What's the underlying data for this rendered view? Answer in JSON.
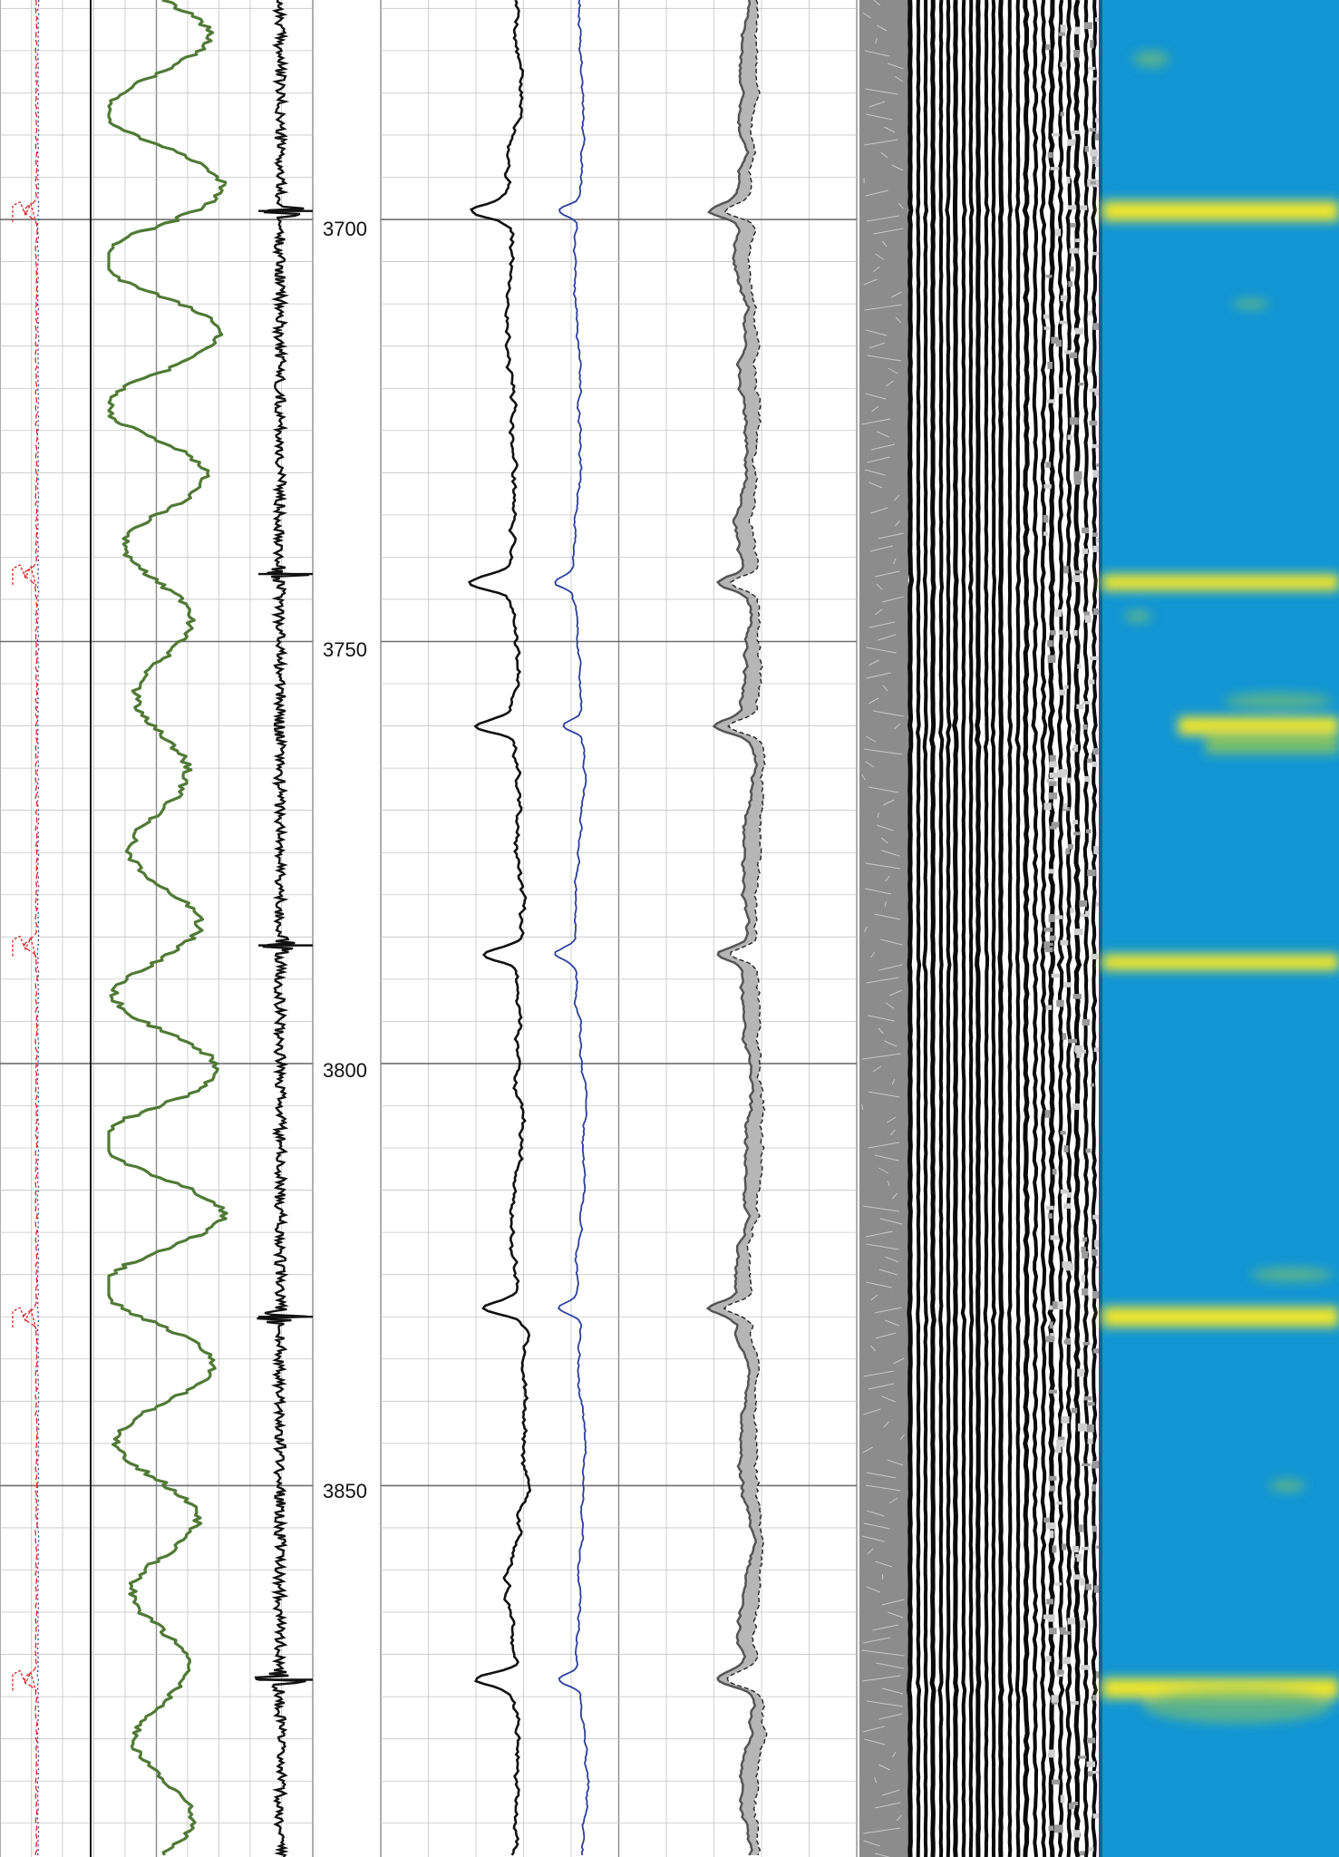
{
  "chart_data": {
    "type": "line",
    "title": "",
    "depth_axis": {
      "ticks": [
        3700,
        3750,
        3800,
        3850
      ],
      "tick_labels": [
        "3700",
        "3750",
        "3800",
        "3850"
      ],
      "range": [
        3674,
        3894
      ],
      "direction": "downward"
    },
    "grid": true,
    "tracks": [
      {
        "id": "track-1",
        "series": [
          {
            "key": "red-dashed",
            "color": "#d9252a",
            "style": "dashed"
          },
          {
            "key": "blue-dotted",
            "color": "#2a3f9d",
            "style": "dotted"
          },
          {
            "key": "black-straight",
            "color": "#111111",
            "style": "solid"
          },
          {
            "key": "green",
            "color": "#4f7a35",
            "style": "solid"
          },
          {
            "key": "black-noisy",
            "color": "#111111",
            "style": "solid"
          }
        ],
        "spike_depths": [
          3699,
          3742,
          3786,
          3830,
          3873
        ]
      },
      {
        "id": "track-2",
        "series": [
          {
            "key": "black",
            "color": "#111111",
            "style": "solid"
          },
          {
            "key": "blue",
            "color": "#2a3f9d",
            "style": "solid"
          },
          {
            "key": "grey-filled",
            "color": "#777777",
            "style": "filled"
          }
        ],
        "dip_depths": [
          3699,
          3743,
          3760,
          3787,
          3829,
          3873
        ]
      },
      {
        "id": "track-3-wiggle",
        "type": "variable-density",
        "colors": [
          "#000000",
          "#ffffff",
          "#888888"
        ]
      },
      {
        "id": "track-4-image",
        "type": "heatmap",
        "colors": {
          "background": "#1296d4",
          "high": "#f2e629",
          "mid": "#7cc06a"
        },
        "bright_depths": [
          3699,
          3743,
          3760,
          3762,
          3788,
          3830,
          3874
        ]
      }
    ]
  }
}
